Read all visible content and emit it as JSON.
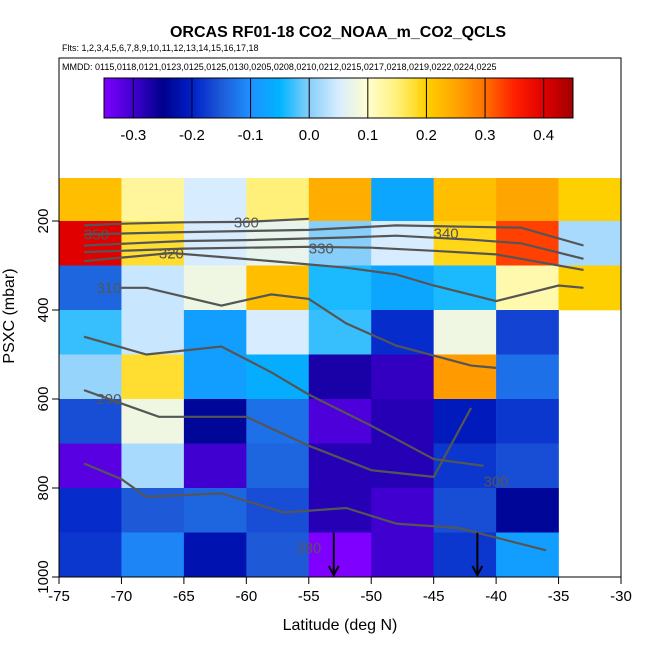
{
  "chart_data": {
    "type": "heatmap",
    "title": "ORCAS RF01-18 CO2_NOAA_m_CO2_QCLS",
    "flights_line": "Flts: 1,2,3,4,5,6,7,8,9,10,11,12,13,14,15,16,17,18",
    "dates_line": "MMDD: 0115,0118,0121,0123,0125,0125,0130,0205,0208,0210,0212,0215,0217,0218,0219,0222,0224,0225",
    "xlabel": "Latitude (deg N)",
    "ylabel": "PSXC (mbar)",
    "xlim": [
      -75,
      -30
    ],
    "ylim": [
      1000,
      100
    ],
    "x_ticks": [
      -75,
      -70,
      -65,
      -60,
      -55,
      -50,
      -45,
      -40,
      -35,
      -30
    ],
    "x_tick_labels": [
      "-75",
      "-70",
      "-65",
      "-60",
      "-55",
      "-50",
      "-45",
      "-40",
      "-35",
      "-30"
    ],
    "y_ticks": [
      200,
      400,
      600,
      800,
      1000
    ],
    "y_tick_labels": [
      "200",
      "400",
      "600",
      "800",
      "1000"
    ],
    "colorbar": {
      "range": [
        -0.35,
        0.45
      ],
      "ticks": [
        -0.3,
        -0.2,
        -0.1,
        0.0,
        0.1,
        0.2,
        0.3,
        0.4
      ],
      "tick_labels": [
        "-0.3",
        "-0.2",
        "-0.1",
        "0.0",
        "0.1",
        "0.2",
        "0.3",
        "0.4"
      ],
      "colors": [
        "#7f00ff",
        "#4000d0",
        "#00008c",
        "#0020c8",
        "#1e5ad8",
        "#1e90ff",
        "#00b4ff",
        "#87cefa",
        "#d8ecff",
        "#ffffd0",
        "#fff07a",
        "#ffd000",
        "#ffa500",
        "#ff7000",
        "#ff2000",
        "#e00000",
        "#a00000"
      ]
    },
    "x_bins": [
      -75,
      -70,
      -65,
      -60,
      -55,
      -50,
      -45,
      -40,
      -35,
      -30
    ],
    "y_bins": [
      100,
      200,
      300,
      400,
      500,
      600,
      700,
      800,
      900,
      1000
    ],
    "values": [
      [
        0.22,
        0.13,
        0.05,
        0.15,
        0.24,
        -0.07,
        0.22,
        0.25,
        0.2
      ],
      [
        0.4,
        0.18,
        0.05,
        0.07,
        0.0,
        0.05,
        0.19,
        0.33,
        0.02
      ],
      [
        -0.14,
        0.04,
        0.08,
        0.22,
        -0.04,
        -0.07,
        -0.04,
        0.12,
        0.2
      ],
      [
        -0.03,
        0.04,
        -0.08,
        0.05,
        -0.03,
        -0.19,
        0.08,
        -0.17,
        null
      ],
      [
        0.01,
        0.18,
        -0.08,
        -0.06,
        -0.27,
        -0.29,
        0.26,
        -0.13,
        null
      ],
      [
        -0.16,
        0.08,
        -0.24,
        -0.13,
        -0.31,
        -0.28,
        -0.21,
        -0.18,
        null
      ],
      [
        -0.32,
        0.02,
        -0.3,
        -0.14,
        -0.28,
        -0.28,
        -0.18,
        -0.16,
        null
      ],
      [
        -0.19,
        -0.15,
        -0.14,
        -0.16,
        -0.28,
        -0.3,
        -0.16,
        -0.24,
        null
      ],
      [
        -0.18,
        -0.11,
        -0.22,
        -0.15,
        -0.35,
        -0.3,
        -0.18,
        -0.08,
        null
      ]
    ],
    "contours": [
      {
        "level": 360,
        "label": "360",
        "points": [
          [
            -73,
            210
          ],
          [
            -70,
            206
          ],
          [
            -65,
            203
          ],
          [
            -60,
            202
          ],
          [
            -55,
            195
          ]
        ]
      },
      {
        "level": 350,
        "label": "350",
        "points": [
          [
            -73,
            230
          ],
          [
            -65,
            225
          ],
          [
            -55,
            220
          ],
          [
            -48,
            210
          ],
          [
            -42,
            213
          ],
          [
            -38,
            215
          ],
          [
            -33,
            255
          ]
        ]
      },
      {
        "level": 340,
        "label": "340",
        "points": [
          [
            -73,
            255
          ],
          [
            -65,
            245
          ],
          [
            -60,
            243
          ],
          [
            -52,
            237
          ],
          [
            -48,
            233
          ],
          [
            -42,
            242
          ],
          [
            -38,
            250
          ],
          [
            -33,
            285
          ]
        ]
      },
      {
        "level": 330,
        "label": "330",
        "points": [
          [
            -73,
            270
          ],
          [
            -65,
            262
          ],
          [
            -55,
            258
          ],
          [
            -50,
            260
          ],
          [
            -45,
            267
          ],
          [
            -40,
            275
          ],
          [
            -33,
            310
          ]
        ]
      },
      {
        "level": 320,
        "label": "320",
        "points": [
          [
            -73,
            290
          ],
          [
            -66,
            272
          ],
          [
            -58,
            290
          ],
          [
            -52,
            305
          ],
          [
            -48,
            320
          ],
          [
            -45,
            345
          ],
          [
            -40,
            380
          ],
          [
            -35,
            345
          ],
          [
            -33,
            350
          ]
        ]
      },
      {
        "level": 310,
        "label": "310",
        "points": [
          [
            -70,
            350
          ],
          [
            -68,
            350
          ],
          [
            -62,
            390
          ],
          [
            -58,
            365
          ],
          [
            -55,
            375
          ],
          [
            -52,
            430
          ],
          [
            -48,
            480
          ],
          [
            -42,
            525
          ],
          [
            -40,
            530
          ]
        ]
      },
      {
        "level": 300,
        "label": "300",
        "points": [
          [
            -73,
            460
          ],
          [
            -68,
            500
          ],
          [
            -62,
            482
          ],
          [
            -58,
            540
          ],
          [
            -55,
            590
          ],
          [
            -50,
            660
          ],
          [
            -45,
            735
          ],
          [
            -41,
            750
          ]
        ]
      },
      {
        "level": 290,
        "label": "290",
        "points": [
          [
            -73,
            580
          ],
          [
            -67,
            640
          ],
          [
            -60,
            640
          ],
          [
            -55,
            705
          ],
          [
            -50,
            760
          ],
          [
            -45,
            775
          ],
          [
            -42,
            620
          ]
        ]
      },
      {
        "level": 280,
        "label": "280",
        "points": [
          [
            -73,
            745
          ],
          [
            -70,
            780
          ],
          [
            -68,
            820
          ],
          [
            -62,
            812
          ],
          [
            -57,
            855
          ],
          [
            -52,
            845
          ],
          [
            -48,
            880
          ],
          [
            -43,
            890
          ],
          [
            -36,
            940
          ]
        ]
      }
    ],
    "contour_labels": [
      {
        "text": "360",
        "x": -60,
        "y": 203
      },
      {
        "text": "350",
        "x": -72,
        "y": 230
      },
      {
        "text": "340",
        "x": -44,
        "y": 228
      },
      {
        "text": "330",
        "x": -54,
        "y": 262
      },
      {
        "text": "320",
        "x": -66,
        "y": 273
      },
      {
        "text": "310",
        "x": -71,
        "y": 350
      },
      {
        "text": "290",
        "x": -71,
        "y": 600
      },
      {
        "text": "300",
        "x": -40,
        "y": 785
      },
      {
        "text": "280",
        "x": -55,
        "y": 935
      }
    ],
    "arrows": [
      {
        "lat": -53,
        "p": 950
      },
      {
        "lat": -41.5,
        "p": 950
      }
    ]
  }
}
